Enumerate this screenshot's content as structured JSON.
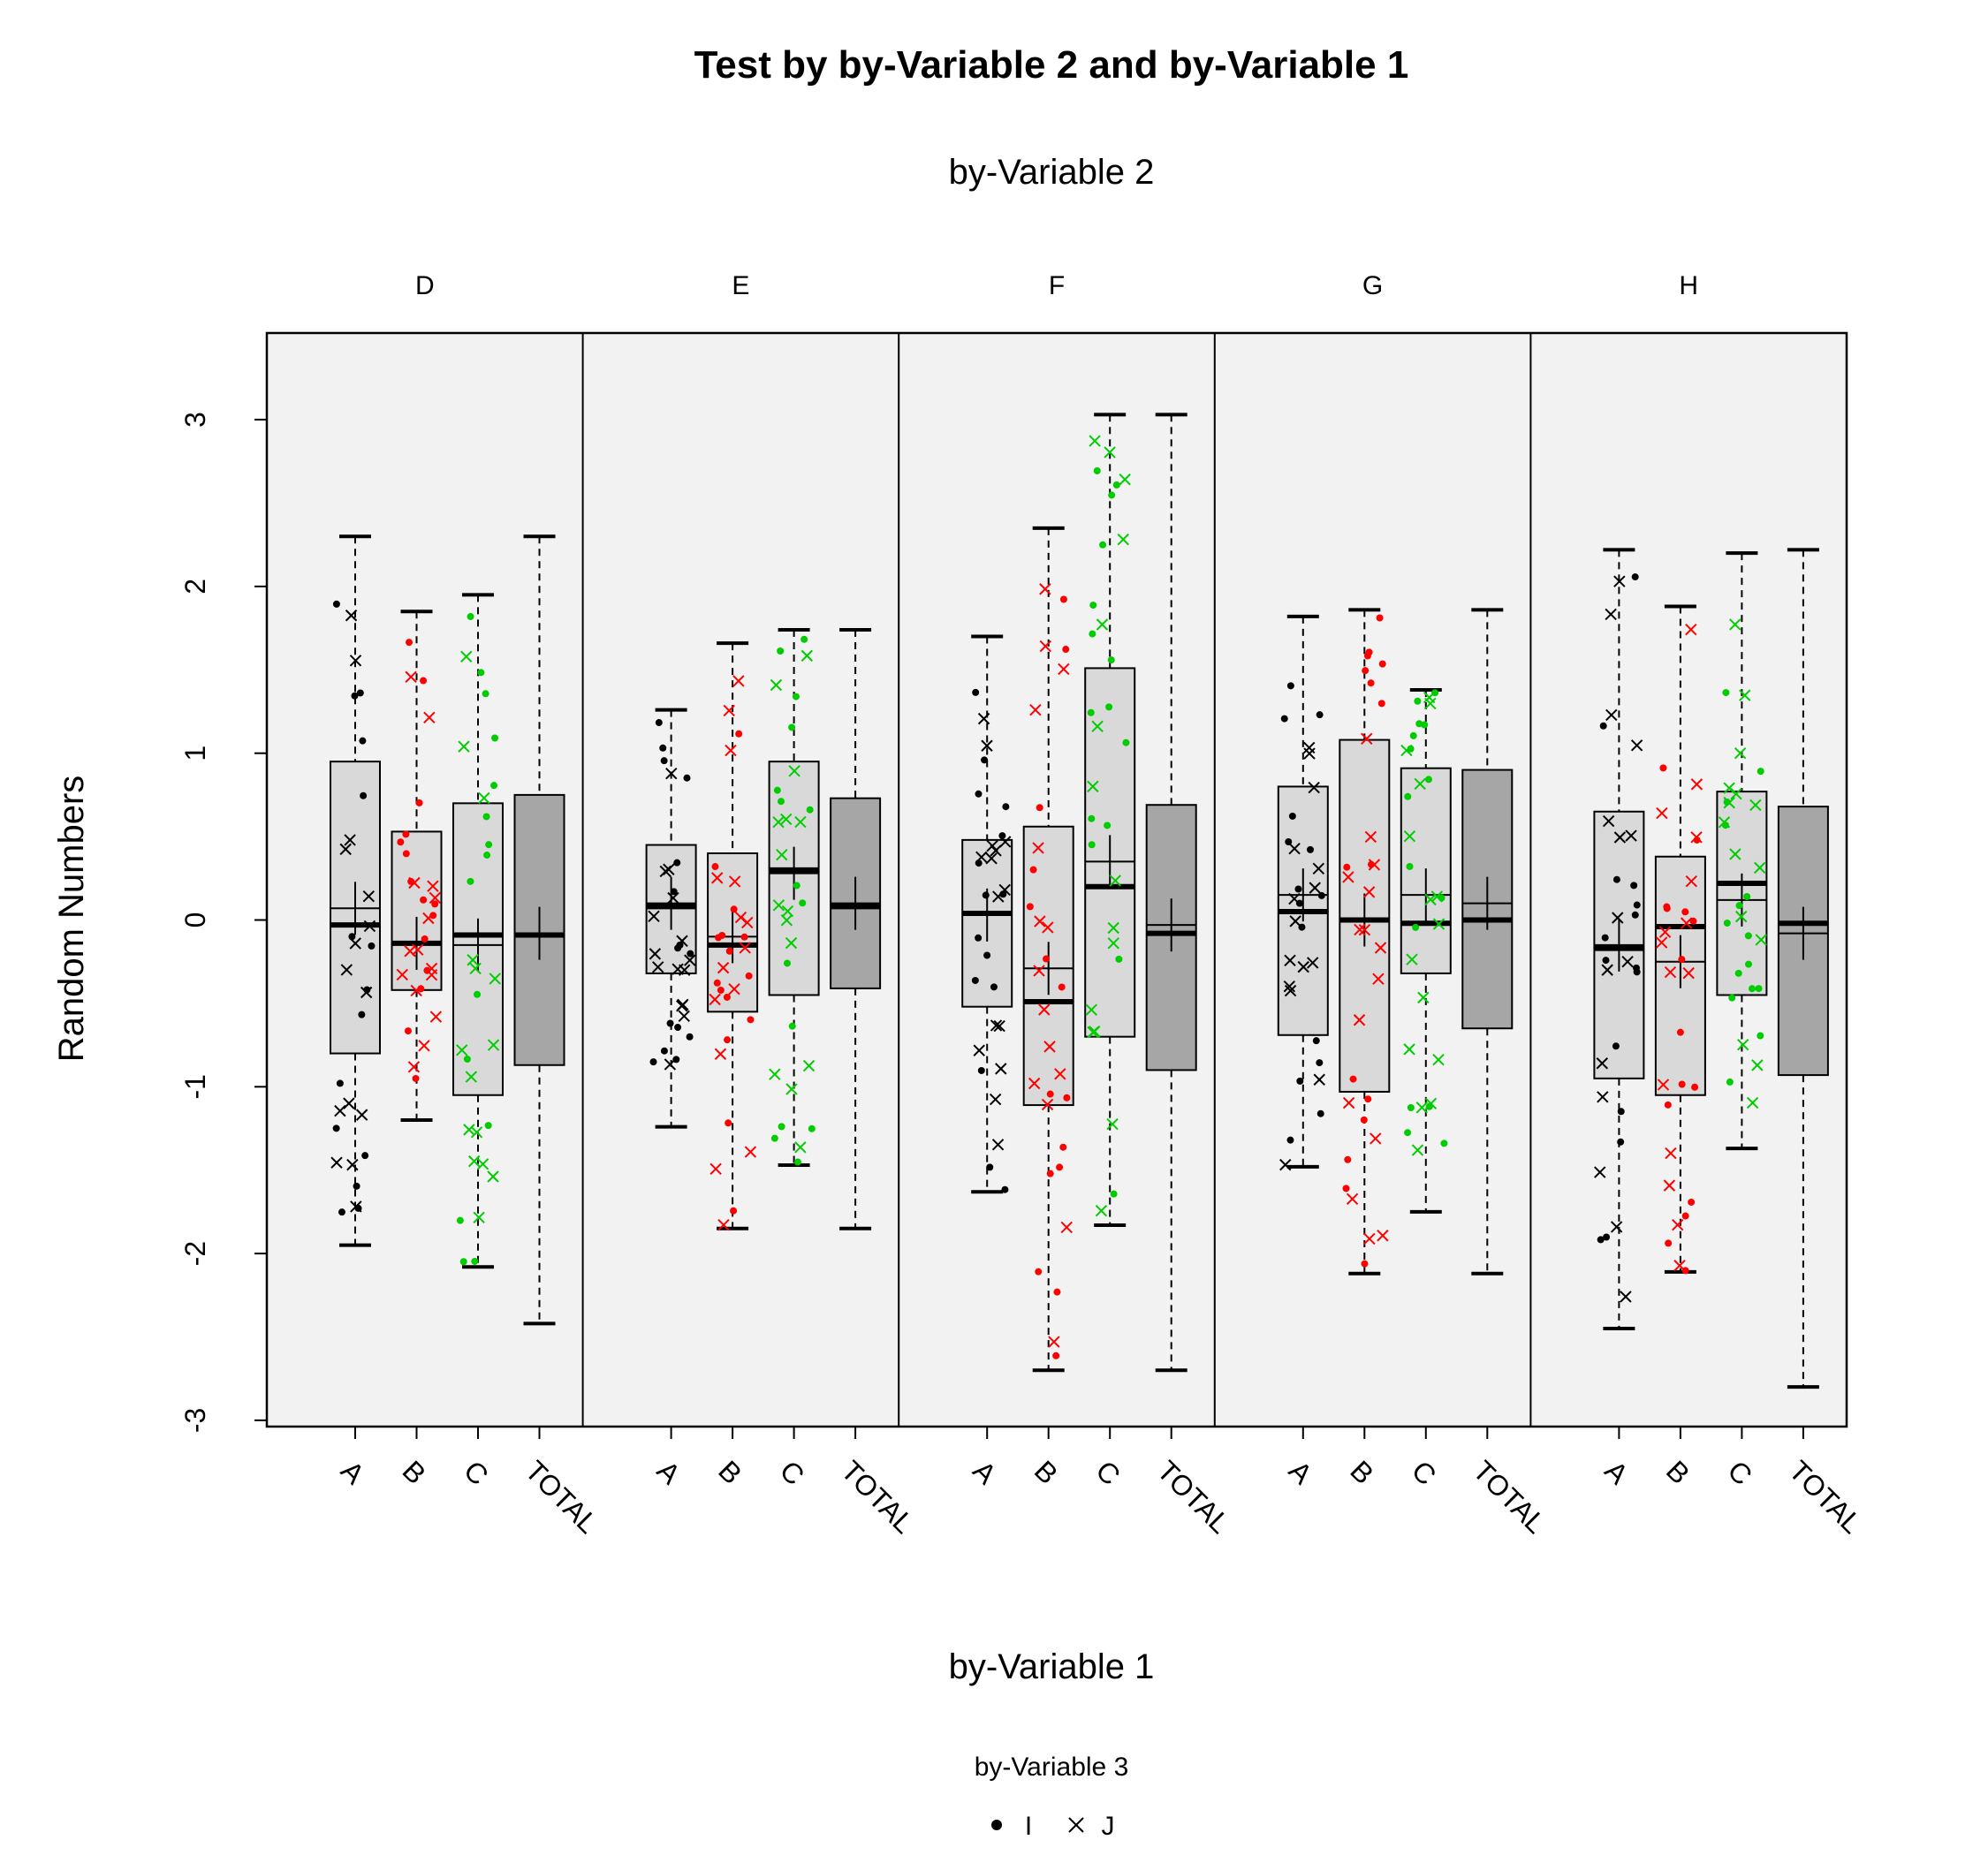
{
  "chart_data": {
    "type": "box",
    "title": "Test by by-Variable 2 and by-Variable 1",
    "subtitle": "by-Variable 2",
    "xlabel": "by-Variable 1",
    "ylabel": "Random Numbers",
    "ylim": [
      -3.0,
      3.55
    ],
    "yticks": [
      "-3",
      "-2",
      "-1",
      "0",
      "1",
      "2",
      "3"
    ],
    "ytick_values": [
      -3,
      -2,
      -1,
      0,
      1,
      2,
      3
    ],
    "categories": [
      "A",
      "B",
      "C",
      "TOTAL"
    ],
    "panels": [
      {
        "name": "D",
        "boxes": [
          {
            "category": "A",
            "whisker_low": -1.95,
            "q1": -0.8,
            "median": -0.03,
            "q3": 0.95,
            "whisker_high": 2.3,
            "mean": 0.07
          },
          {
            "category": "B",
            "whisker_low": -1.2,
            "q1": -0.42,
            "median": -0.14,
            "q3": 0.53,
            "whisker_high": 1.85,
            "mean": -0.14
          },
          {
            "category": "C",
            "whisker_low": -2.08,
            "q1": -1.05,
            "median": -0.09,
            "q3": 0.7,
            "whisker_high": 1.95,
            "mean": -0.15
          },
          {
            "category": "TOTAL",
            "whisker_low": -2.42,
            "q1": -0.87,
            "median": -0.09,
            "q3": 0.75,
            "whisker_high": 2.3,
            "mean": -0.08
          }
        ]
      },
      {
        "name": "E",
        "boxes": [
          {
            "category": "A",
            "whisker_low": -1.24,
            "q1": -0.32,
            "median": 0.08,
            "q3": 0.45,
            "whisker_high": 1.26,
            "mean": 0.1
          },
          {
            "category": "B",
            "whisker_low": -1.85,
            "q1": -0.55,
            "median": -0.15,
            "q3": 0.4,
            "whisker_high": 1.66,
            "mean": -0.1
          },
          {
            "category": "C",
            "whisker_low": -1.47,
            "q1": -0.45,
            "median": 0.3,
            "q3": 0.95,
            "whisker_high": 1.74,
            "mean": 0.28
          },
          {
            "category": "TOTAL",
            "whisker_low": -1.85,
            "q1": -0.41,
            "median": 0.08,
            "q3": 0.73,
            "whisker_high": 1.74,
            "mean": 0.1
          }
        ]
      },
      {
        "name": "F",
        "boxes": [
          {
            "category": "A",
            "whisker_low": -1.63,
            "q1": -0.52,
            "median": 0.04,
            "q3": 0.48,
            "whisker_high": 1.7,
            "mean": 0.03
          },
          {
            "category": "B",
            "whisker_low": -2.7,
            "q1": -1.11,
            "median": -0.49,
            "q3": 0.56,
            "whisker_high": 2.35,
            "mean": -0.29
          },
          {
            "category": "C",
            "whisker_low": -1.83,
            "q1": -0.7,
            "median": 0.2,
            "q3": 1.51,
            "whisker_high": 3.03,
            "mean": 0.35
          },
          {
            "category": "TOTAL",
            "whisker_low": -2.7,
            "q1": -0.9,
            "median": -0.08,
            "q3": 0.69,
            "whisker_high": 3.03,
            "mean": -0.03
          }
        ]
      },
      {
        "name": "G",
        "boxes": [
          {
            "category": "A",
            "whisker_low": -1.48,
            "q1": -0.69,
            "median": 0.05,
            "q3": 0.8,
            "whisker_high": 1.82,
            "mean": 0.15
          },
          {
            "category": "B",
            "whisker_low": -2.12,
            "q1": -1.03,
            "median": 0.0,
            "q3": 1.08,
            "whisker_high": 1.86,
            "mean": 0.0
          },
          {
            "category": "C",
            "whisker_low": -1.75,
            "q1": -0.32,
            "median": -0.02,
            "q3": 0.91,
            "whisker_high": 1.38,
            "mean": 0.15
          },
          {
            "category": "TOTAL",
            "whisker_low": -2.12,
            "q1": -0.65,
            "median": 0.0,
            "q3": 0.9,
            "whisker_high": 1.86,
            "mean": 0.1
          }
        ]
      },
      {
        "name": "H",
        "boxes": [
          {
            "category": "A",
            "whisker_low": -2.45,
            "q1": -0.95,
            "median": -0.17,
            "q3": 0.65,
            "whisker_high": 2.22,
            "mean": -0.15
          },
          {
            "category": "B",
            "whisker_low": -2.11,
            "q1": -1.05,
            "median": -0.04,
            "q3": 0.38,
            "whisker_high": 1.88,
            "mean": -0.25
          },
          {
            "category": "C",
            "whisker_low": -1.37,
            "q1": -0.45,
            "median": 0.22,
            "q3": 0.77,
            "whisker_high": 2.2,
            "mean": 0.12
          },
          {
            "category": "TOTAL",
            "whisker_low": -2.8,
            "q1": -0.93,
            "median": -0.02,
            "q3": 0.68,
            "whisker_high": 2.22,
            "mean": -0.08
          }
        ]
      }
    ],
    "legend": {
      "title": "by-Variable 3",
      "placement": "bottom",
      "items": [
        {
          "label": "I",
          "symbol": "dot"
        },
        {
          "label": "J",
          "symbol": "cross"
        }
      ]
    },
    "colors": {
      "A": "#000000",
      "B": "#ff0000",
      "C": "#00cd00",
      "panel_background": "#f2f2f2",
      "box_fill": "#d9d9d9",
      "total_box_fill": "#a6a6a6"
    },
    "grid": false
  }
}
